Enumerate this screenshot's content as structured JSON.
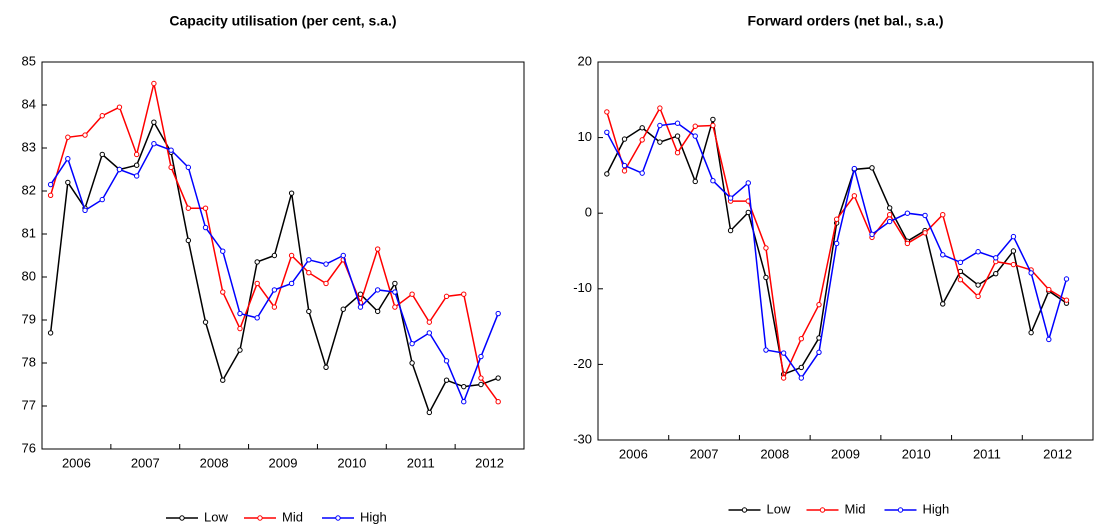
{
  "chart_data": [
    {
      "type": "line",
      "title": "Capacity utilisation (per cent, s.a.)",
      "categories": [
        "2006",
        null,
        null,
        null,
        "2007",
        null,
        null,
        null,
        "2008",
        null,
        null,
        null,
        "2009",
        null,
        null,
        null,
        "2010",
        null,
        null,
        null,
        "2011",
        null,
        null,
        null,
        "2012",
        null,
        null
      ],
      "ylim": [
        76,
        85
      ],
      "yticks": [
        76,
        77,
        78,
        79,
        80,
        81,
        82,
        83,
        84,
        85
      ],
      "series": [
        {
          "name": "Low",
          "color": "#000000",
          "values": [
            78.7,
            82.2,
            81.6,
            82.85,
            82.5,
            82.6,
            83.6,
            82.9,
            80.85,
            78.95,
            77.6,
            78.3,
            80.35,
            80.5,
            81.95,
            79.2,
            77.9,
            79.25,
            79.6,
            79.2,
            79.85,
            78.0,
            76.85,
            77.6,
            77.45,
            77.5,
            77.65
          ]
        },
        {
          "name": "Mid",
          "color": "#ff0000",
          "values": [
            81.9,
            83.25,
            83.3,
            83.75,
            83.95,
            82.85,
            84.5,
            82.55,
            81.6,
            81.6,
            79.65,
            78.8,
            79.85,
            79.3,
            80.5,
            80.1,
            79.85,
            80.4,
            79.4,
            80.65,
            79.3,
            79.6,
            78.95,
            79.55,
            79.6,
            77.65,
            77.1
          ]
        },
        {
          "name": "High",
          "color": "#0000ff",
          "values": [
            82.15,
            82.75,
            81.55,
            81.8,
            82.5,
            82.35,
            83.1,
            82.95,
            82.55,
            81.15,
            80.6,
            79.15,
            79.05,
            79.7,
            79.85,
            80.4,
            80.3,
            80.5,
            79.3,
            79.7,
            79.65,
            78.45,
            78.7,
            78.05,
            77.1,
            78.15,
            79.15
          ]
        }
      ]
    },
    {
      "type": "line",
      "title": "Forward orders (net bal., s.a.)",
      "categories": [
        "2006",
        null,
        null,
        null,
        "2007",
        null,
        null,
        null,
        "2008",
        null,
        null,
        null,
        "2009",
        null,
        null,
        null,
        "2010",
        null,
        null,
        null,
        "2011",
        null,
        null,
        null,
        "2012",
        null,
        null
      ],
      "ylim": [
        -30,
        20
      ],
      "yticks": [
        -30,
        -20,
        -10,
        0,
        10,
        20
      ],
      "series": [
        {
          "name": "Low",
          "color": "#000000",
          "values": [
            5.2,
            9.8,
            11.3,
            9.4,
            10.2,
            4.2,
            12.4,
            -2.3,
            0.1,
            -8.5,
            -21.3,
            -20.4,
            -16.5,
            -1.3,
            5.8,
            6.0,
            0.7,
            -3.7,
            -2.3,
            -12.0,
            -7.7,
            -9.5,
            -8.0,
            -5.0,
            -15.8,
            -10.3,
            -11.9
          ]
        },
        {
          "name": "Mid",
          "color": "#ff0000",
          "values": [
            13.4,
            5.6,
            9.7,
            13.9,
            8.0,
            11.5,
            11.6,
            1.6,
            1.6,
            -4.6,
            -21.8,
            -16.6,
            -12.1,
            -0.8,
            2.3,
            -3.2,
            -0.2,
            -4.0,
            -2.6,
            -0.2,
            -8.8,
            -11.0,
            -6.4,
            -6.8,
            -7.5,
            -10.1,
            -11.5
          ]
        },
        {
          "name": "High",
          "color": "#0000ff",
          "values": [
            10.7,
            6.3,
            5.3,
            11.6,
            11.9,
            10.2,
            4.3,
            2.0,
            4.0,
            -18.1,
            -18.5,
            -21.8,
            -18.4,
            -4.0,
            5.9,
            -2.8,
            -1.1,
            0.0,
            -0.3,
            -5.5,
            -6.5,
            -5.1,
            -5.9,
            -3.1,
            -7.9,
            -16.7,
            -8.7
          ]
        }
      ]
    }
  ]
}
